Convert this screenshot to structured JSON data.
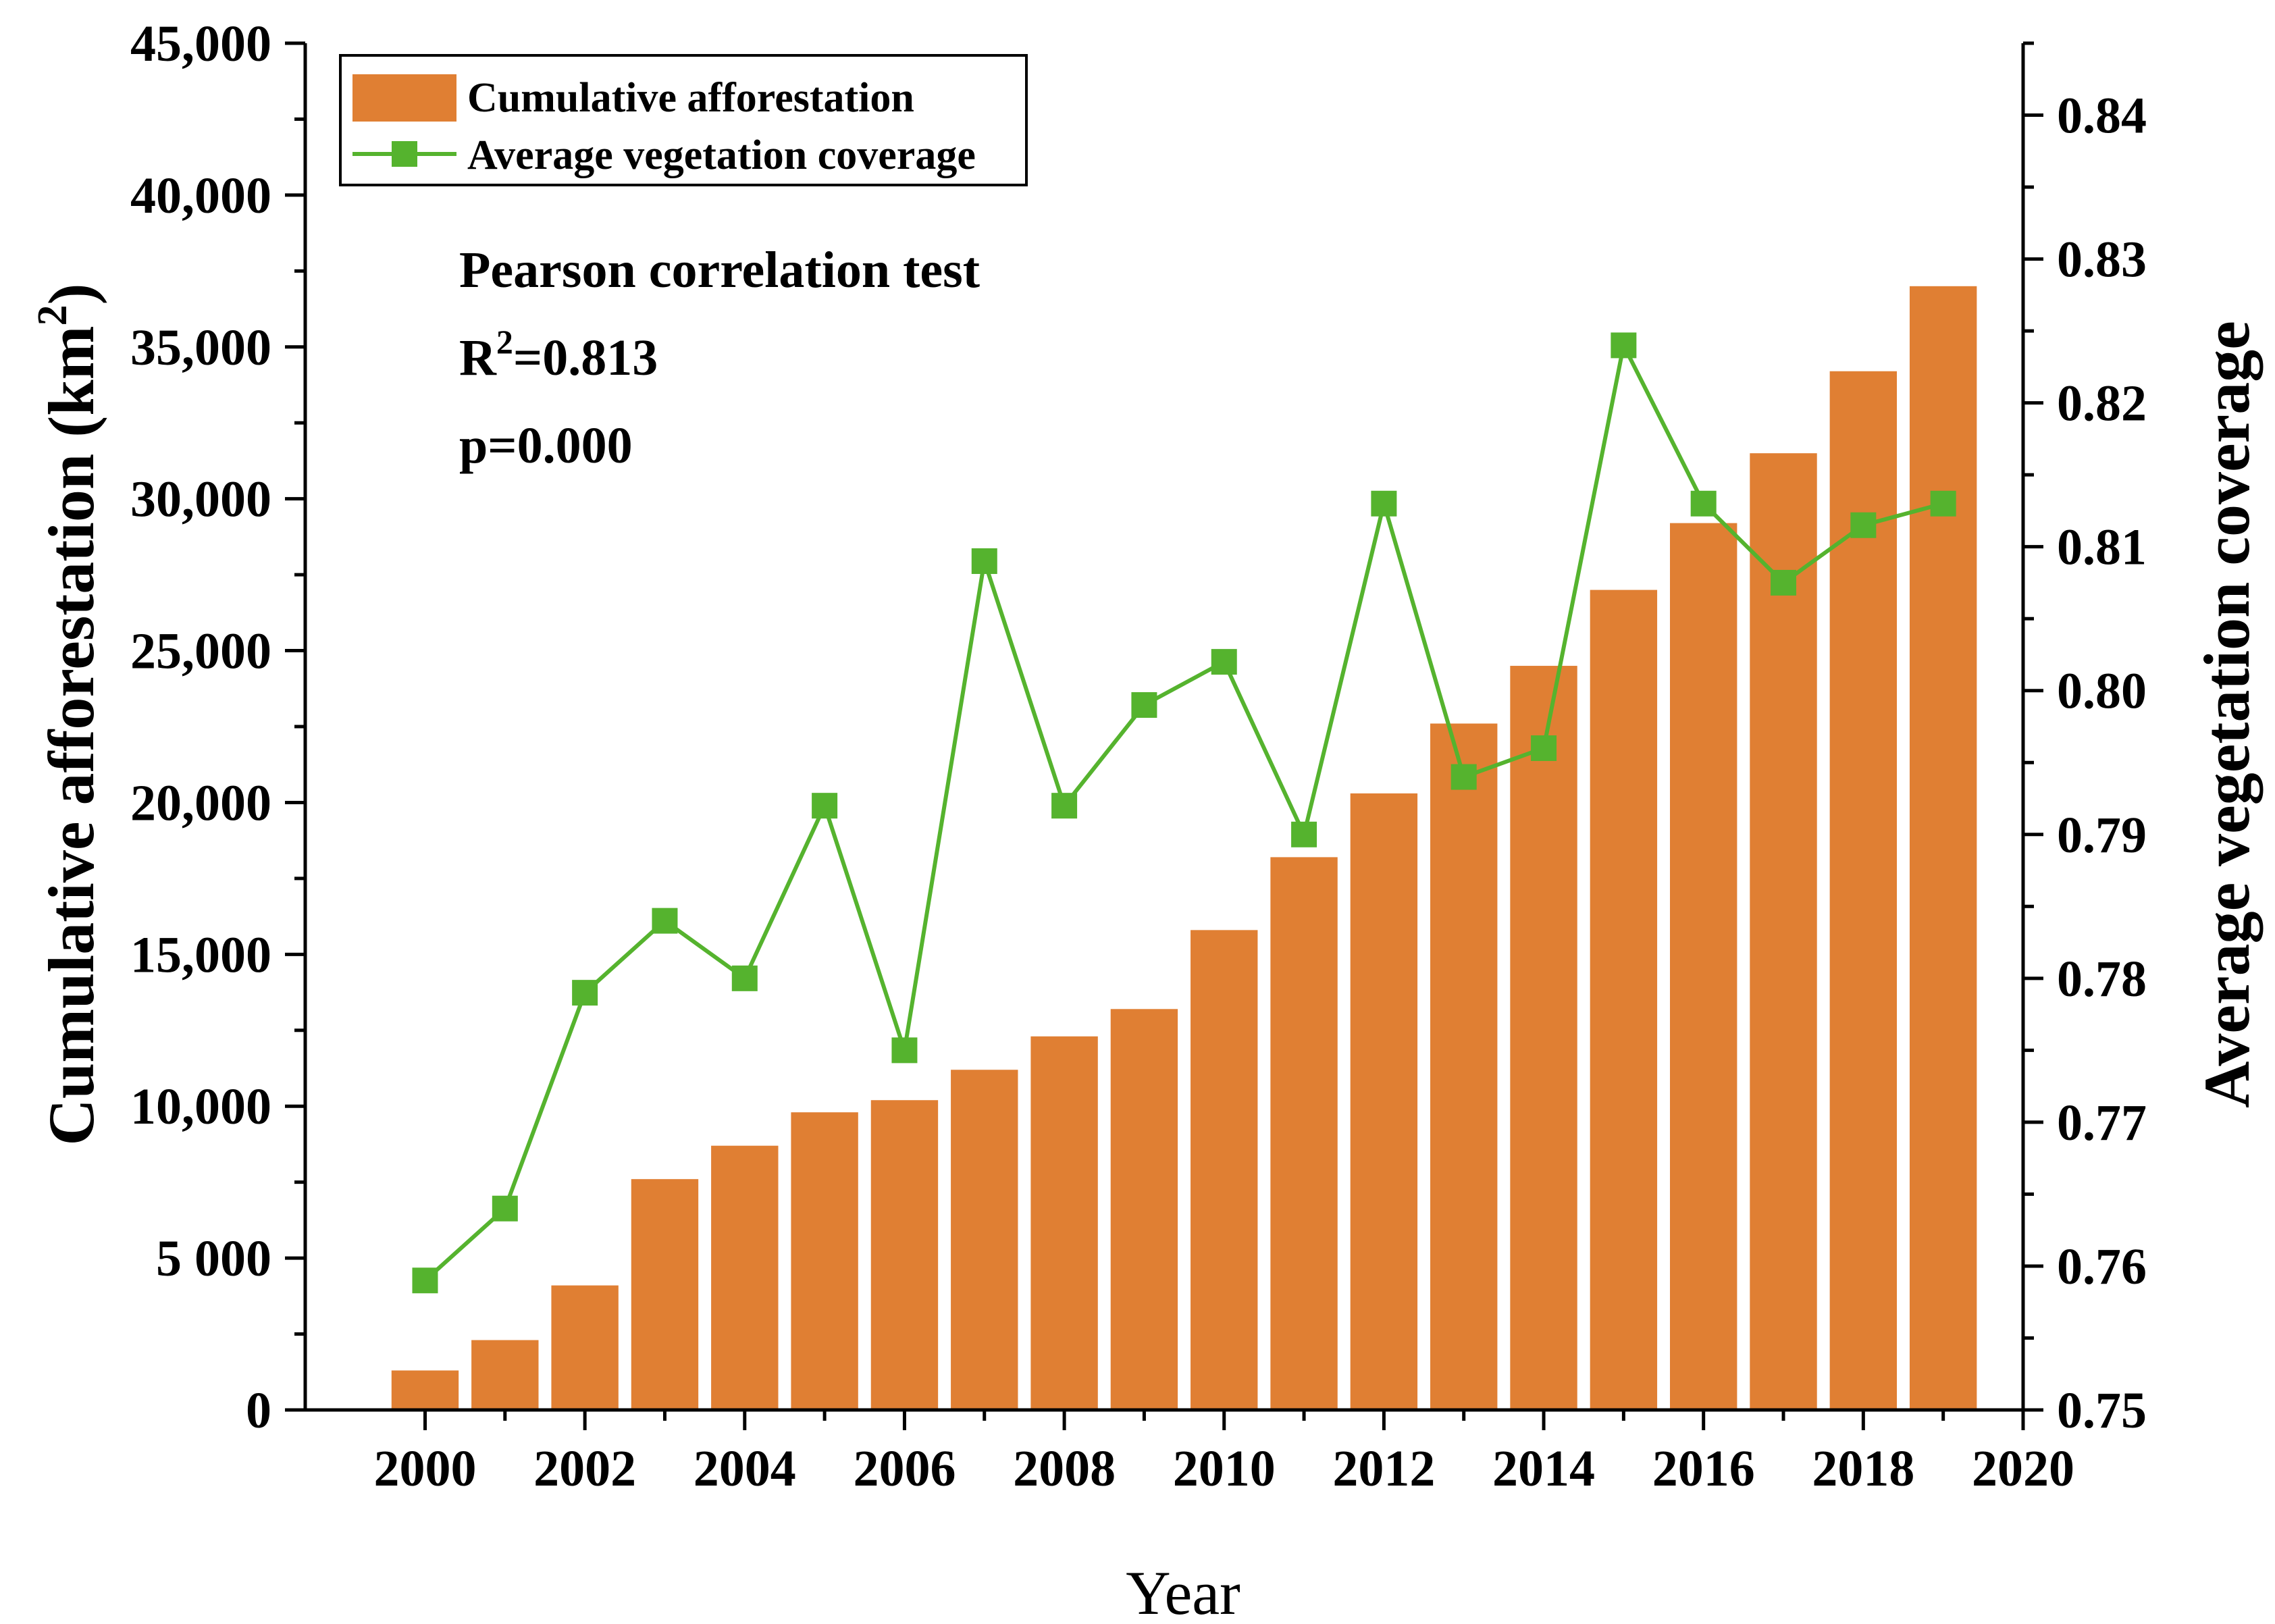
{
  "chart_data": {
    "type": "bar",
    "title": "",
    "xlabel": "Year",
    "ylabel": "Cumulative afforestation (km",
    "ylabel_sup": "2",
    "ylabel_close": ")",
    "y2label": "Average vegetation coverage",
    "xlim": [
      1998.5,
      2020
    ],
    "ylim": [
      0,
      45000
    ],
    "y2lim": [
      0.75,
      0.845
    ],
    "xticks": [
      "2000",
      "2002",
      "2004",
      "2006",
      "2008",
      "2010",
      "2012",
      "2014",
      "2016",
      "2018",
      "2020"
    ],
    "yticks": [
      "0",
      "5 000",
      "10,000",
      "15,000",
      "20,000",
      "25,000",
      "30,000",
      "35,000",
      "40,000",
      "45,000"
    ],
    "y2ticks": [
      "0.75",
      "0.76",
      "0.77",
      "0.78",
      "0.79",
      "0.80",
      "0.81",
      "0.82",
      "0.83",
      "0.84"
    ],
    "x": [
      2000,
      2001,
      2002,
      2003,
      2004,
      2005,
      2006,
      2007,
      2008,
      2009,
      2010,
      2011,
      2012,
      2013,
      2014,
      2015,
      2016,
      2017,
      2018,
      2019
    ],
    "series": [
      {
        "name": "Cumulative afforestation",
        "type": "bar",
        "axis": "left",
        "color": "#e07f33",
        "values": [
          1300,
          2300,
          4100,
          7600,
          8700,
          9800,
          10200,
          11200,
          12300,
          13200,
          15800,
          18200,
          20300,
          22600,
          24500,
          27000,
          29200,
          31500,
          34200,
          37000
        ]
      },
      {
        "name": "Average vegetation coverage",
        "type": "line",
        "axis": "right",
        "color": "#55b32e",
        "marker": "square",
        "values": [
          0.759,
          0.764,
          0.779,
          0.784,
          0.78,
          0.792,
          0.775,
          0.809,
          0.792,
          0.799,
          0.802,
          0.79,
          0.813,
          0.794,
          0.796,
          0.824,
          0.813,
          0.8075,
          0.8115,
          0.813
        ]
      }
    ],
    "legend": "top-left",
    "grid": false,
    "annotations": {
      "line1": "Pearson correlation test",
      "line2_prefix": "R",
      "line2_sup": "2",
      "line2_suffix": "=0.813",
      "line3": "p=0.000"
    }
  }
}
